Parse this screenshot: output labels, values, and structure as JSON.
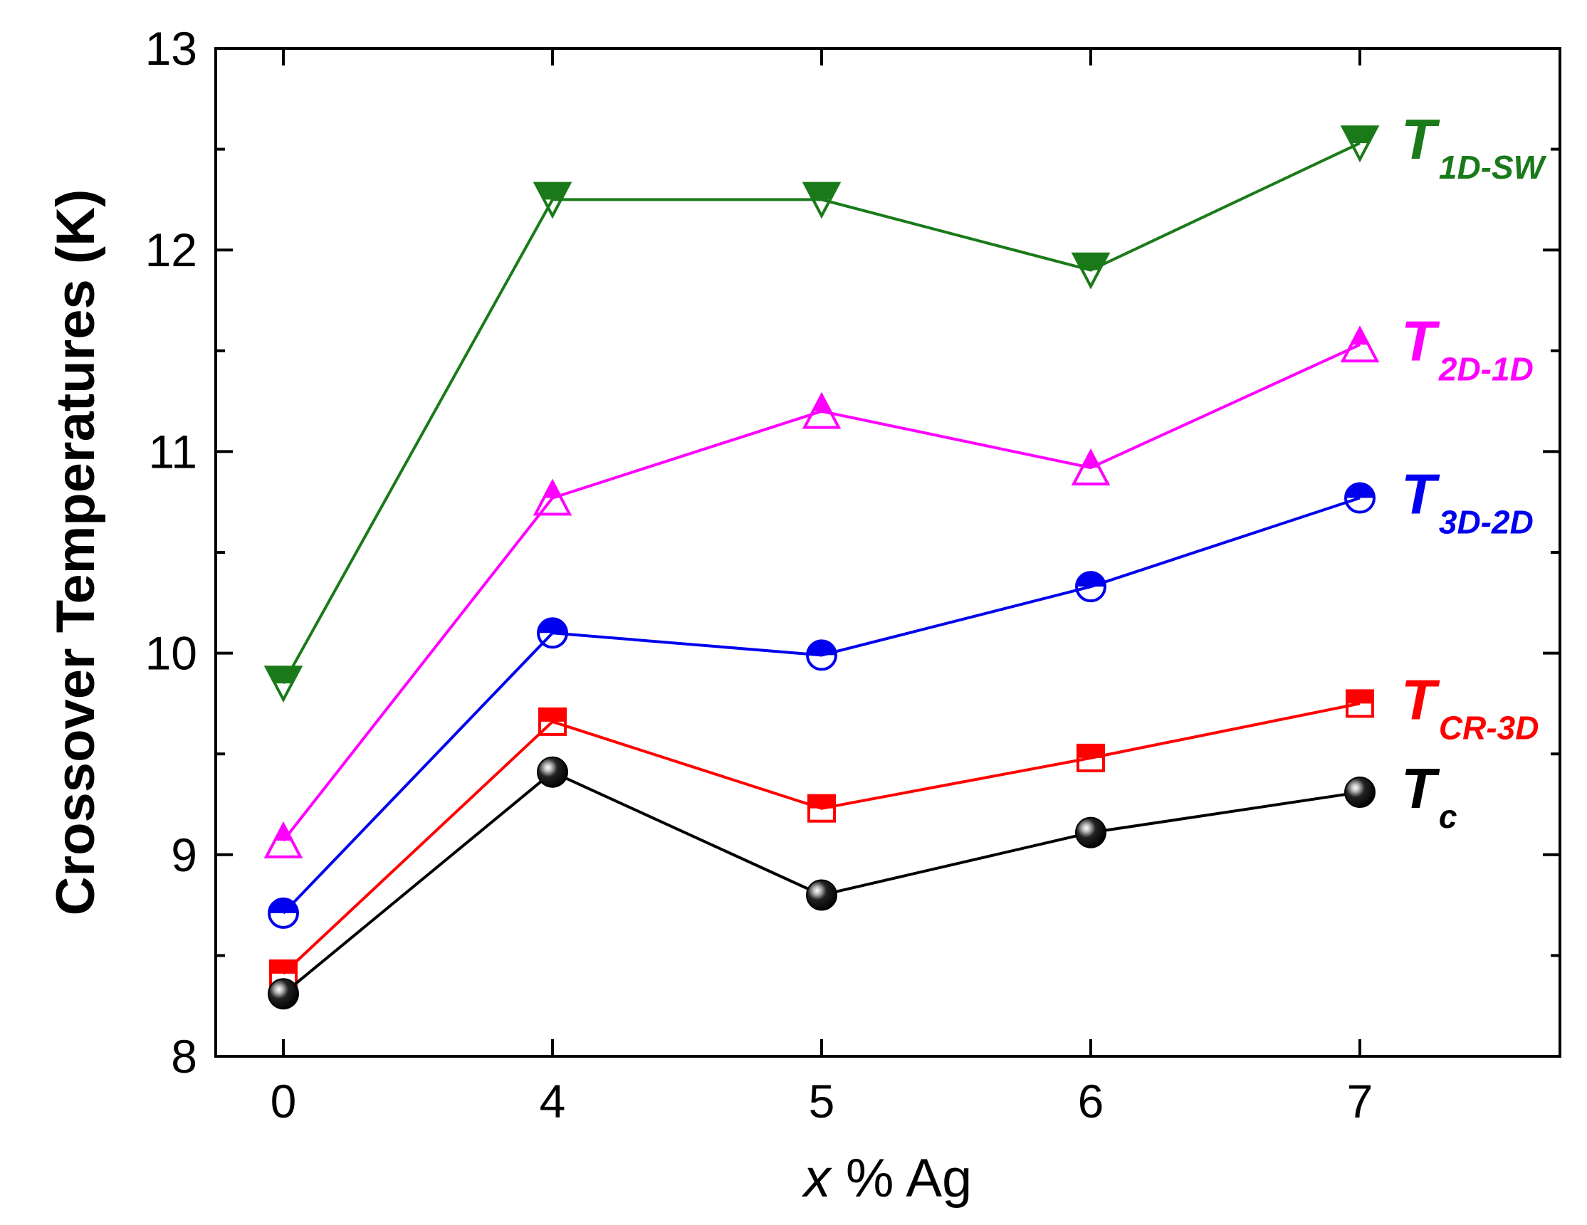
{
  "chart_data": {
    "type": "line",
    "title": "",
    "xlabel_italic": "x",
    "xlabel_rest": " % Ag",
    "ylabel": "Crossover Temperatures (K)",
    "categories": [
      "0",
      "4",
      "5",
      "6",
      "7"
    ],
    "ylim": [
      8,
      13
    ],
    "yticks": [
      "8",
      "9",
      "10",
      "11",
      "12",
      "13"
    ],
    "series": [
      {
        "name": "T",
        "sub": "1D-SW",
        "color": "#1a7a1a",
        "marker": "triangle-down-half",
        "values": [
          9.85,
          12.25,
          12.25,
          11.9,
          12.53
        ]
      },
      {
        "name": "T",
        "sub": "2D-1D",
        "color": "#ff00ff",
        "marker": "triangle-up-half",
        "values": [
          9.07,
          10.77,
          11.2,
          10.92,
          11.53
        ]
      },
      {
        "name": "T",
        "sub": "3D-2D",
        "color": "#0000ee",
        "marker": "circle-half",
        "values": [
          8.71,
          10.1,
          9.99,
          10.33,
          10.77
        ]
      },
      {
        "name": "T",
        "sub": "CR-3D",
        "color": "#ff0000",
        "marker": "square-half",
        "values": [
          8.41,
          9.66,
          9.23,
          9.48,
          9.75
        ]
      },
      {
        "name": "T",
        "sub": "c",
        "color": "#000000",
        "marker": "sphere",
        "values": [
          8.31,
          9.41,
          8.8,
          9.11,
          9.31
        ]
      }
    ]
  }
}
